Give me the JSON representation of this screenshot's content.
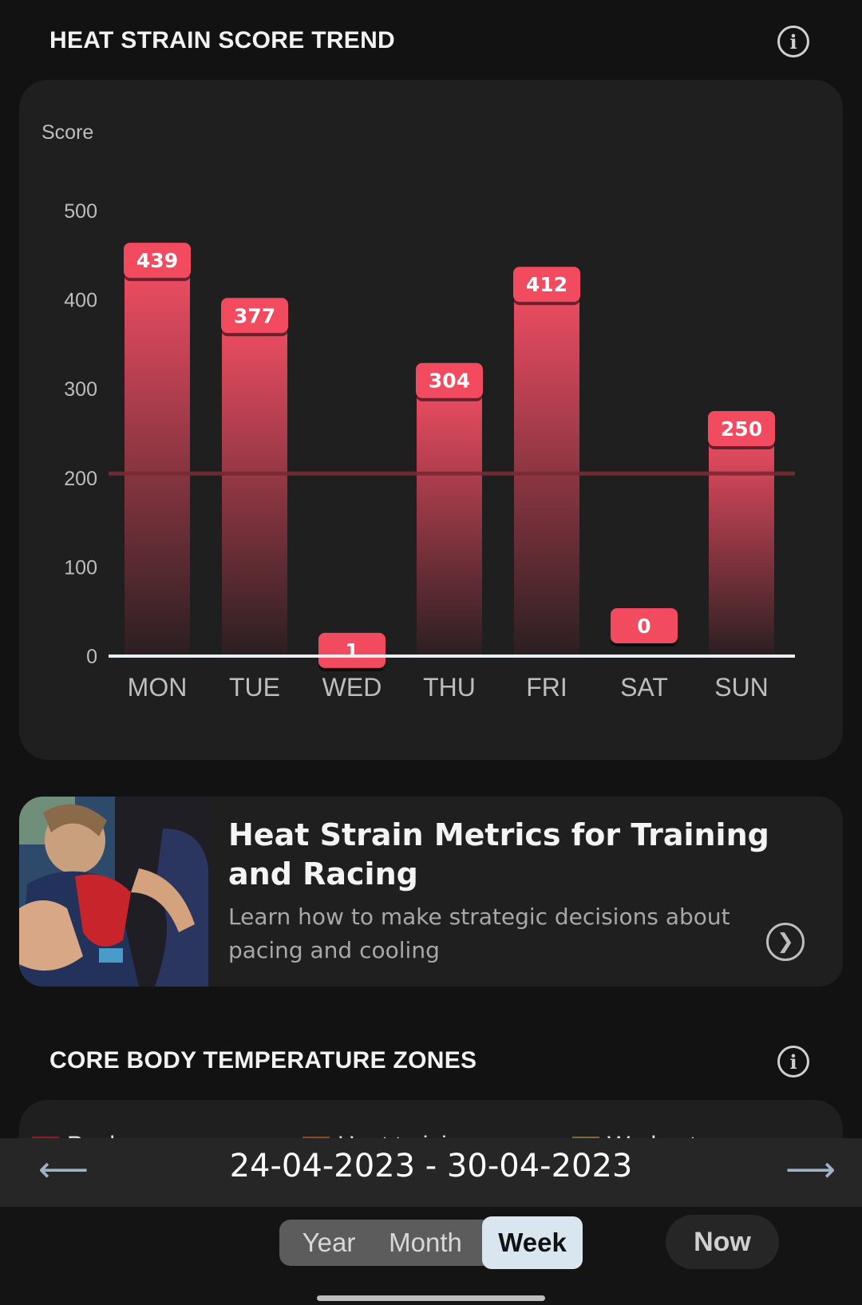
{
  "heat_section": {
    "title": "HEAT STRAIN SCORE TREND",
    "info_icon": "info-icon"
  },
  "chart": {
    "ylabel": "Score"
  },
  "chart_data": {
    "type": "bar",
    "categories": [
      "MON",
      "TUE",
      "WED",
      "THU",
      "FRI",
      "SAT",
      "SUN"
    ],
    "values": [
      439,
      377,
      1,
      304,
      412,
      0,
      250
    ],
    "data_labels": [
      "439",
      "377",
      "1",
      "304",
      "412",
      "0",
      "250"
    ],
    "ylabel": "Score",
    "ylim": [
      0,
      500
    ],
    "yticks": [
      0,
      100,
      200,
      300,
      400,
      500
    ],
    "ytick_labels": [
      "0",
      "100",
      "200",
      "300",
      "400",
      "500"
    ],
    "reference_line": 205,
    "bar_color_top": "#f04d63",
    "bar_color_bottom": "#2a1f21",
    "label_color": "#f24a5f",
    "grid": false
  },
  "article": {
    "title": "Heat Strain Metrics for Training and Racing",
    "description": "Learn how to make strategic decisions about pacing and cooling",
    "chevron_icon": "chevron-right-icon"
  },
  "zones_section": {
    "title": "CORE BODY TEMPERATURE ZONES",
    "info_icon": "info-icon",
    "legend": [
      {
        "label": "Peak",
        "color": "#8b1f24"
      },
      {
        "label": "Heat training",
        "color": "#8a4a24"
      },
      {
        "label": "Workout",
        "color": "#7a6a3c"
      }
    ]
  },
  "date_nav": {
    "range": "24-04-2023 - 30-04-2023",
    "prev_icon": "arrow-left-icon",
    "next_icon": "arrow-right-icon"
  },
  "period": {
    "options": [
      "Year",
      "Month",
      "Week"
    ],
    "selected": "Week",
    "now_label": "Now"
  },
  "colors": {
    "background": "#121212",
    "card": "#1f1f1f",
    "accent": "#f24a5f"
  }
}
